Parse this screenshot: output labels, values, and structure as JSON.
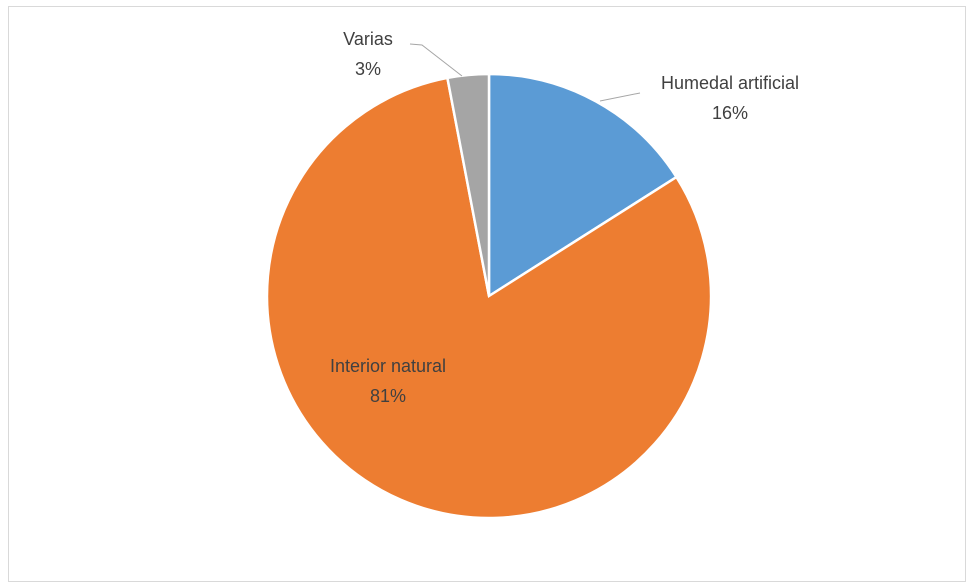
{
  "chart_data": {
    "type": "pie",
    "categories": [
      "Humedal artificial",
      "Interior natural",
      "Varias"
    ],
    "values": [
      16,
      81,
      3
    ],
    "value_labels": [
      "16%",
      "81%",
      "3%"
    ],
    "colors": [
      "#5b9bd5",
      "#ed7d31",
      "#a5a5a5"
    ]
  }
}
